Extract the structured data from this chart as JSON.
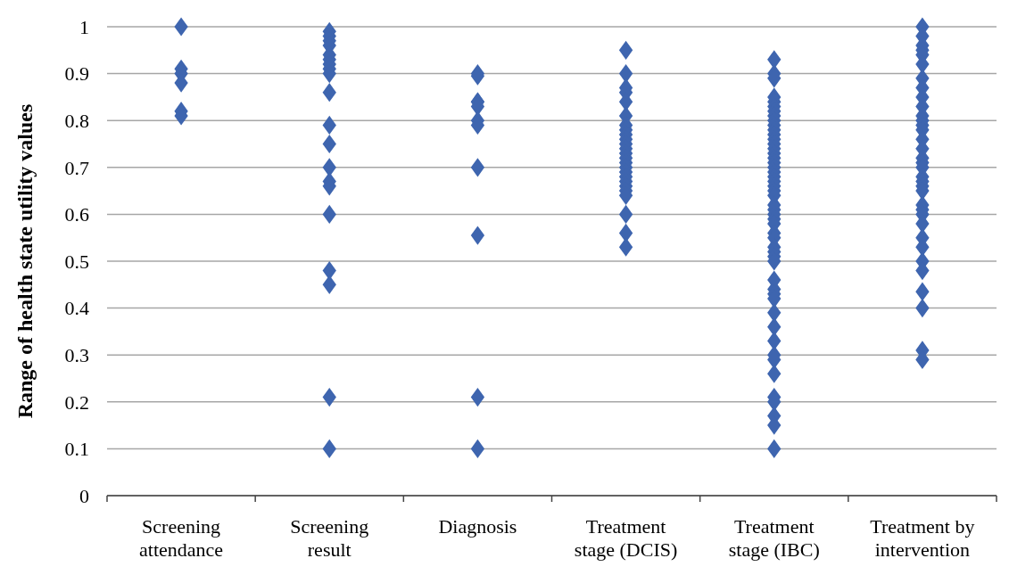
{
  "chart_data": {
    "type": "scatter",
    "ylabel": "Range of health state utility values",
    "categories": [
      "Screening attendance",
      "Screening result",
      "Diagnosis",
      "Treatment stage (DCIS)",
      "Treatment stage (IBC)",
      "Treatment by intervention"
    ],
    "ylim": [
      0,
      1
    ],
    "yticks": [
      0,
      0.1,
      0.2,
      0.3,
      0.4,
      0.5,
      0.6,
      0.7,
      0.8,
      0.9,
      1
    ],
    "grid": "y",
    "marker": "diamond",
    "series": [
      {
        "color": "#3e65af",
        "x": [
          "Screening attendance",
          "Screening attendance",
          "Screening attendance",
          "Screening attendance",
          "Screening attendance",
          "Screening attendance",
          "Screening result",
          "Screening result",
          "Screening result",
          "Screening result",
          "Screening result",
          "Screening result",
          "Screening result",
          "Screening result",
          "Screening result",
          "Screening result",
          "Screening result",
          "Screening result",
          "Screening result",
          "Screening result",
          "Screening result",
          "Screening result",
          "Screening result",
          "Screening result",
          "Screening result",
          "Screening result",
          "Diagnosis",
          "Diagnosis",
          "Diagnosis",
          "Diagnosis",
          "Diagnosis",
          "Diagnosis",
          "Diagnosis",
          "Diagnosis",
          "Diagnosis",
          "Diagnosis",
          "Diagnosis",
          "Treatment stage (DCIS)",
          "Treatment stage (DCIS)",
          "Treatment stage (DCIS)",
          "Treatment stage (DCIS)",
          "Treatment stage (DCIS)",
          "Treatment stage (DCIS)",
          "Treatment stage (DCIS)",
          "Treatment stage (DCIS)",
          "Treatment stage (DCIS)",
          "Treatment stage (DCIS)",
          "Treatment stage (DCIS)",
          "Treatment stage (DCIS)",
          "Treatment stage (DCIS)",
          "Treatment stage (DCIS)",
          "Treatment stage (DCIS)",
          "Treatment stage (DCIS)",
          "Treatment stage (DCIS)",
          "Treatment stage (DCIS)",
          "Treatment stage (DCIS)",
          "Treatment stage (DCIS)",
          "Treatment stage (DCIS)",
          "Treatment stage (DCIS)",
          "Treatment stage (DCIS)",
          "Treatment stage (DCIS)",
          "Treatment stage (DCIS)",
          "Treatment stage (IBC)",
          "Treatment stage (IBC)",
          "Treatment stage (IBC)",
          "Treatment stage (IBC)",
          "Treatment stage (IBC)",
          "Treatment stage (IBC)",
          "Treatment stage (IBC)",
          "Treatment stage (IBC)",
          "Treatment stage (IBC)",
          "Treatment stage (IBC)",
          "Treatment stage (IBC)",
          "Treatment stage (IBC)",
          "Treatment stage (IBC)",
          "Treatment stage (IBC)",
          "Treatment stage (IBC)",
          "Treatment stage (IBC)",
          "Treatment stage (IBC)",
          "Treatment stage (IBC)",
          "Treatment stage (IBC)",
          "Treatment stage (IBC)",
          "Treatment stage (IBC)",
          "Treatment stage (IBC)",
          "Treatment stage (IBC)",
          "Treatment stage (IBC)",
          "Treatment stage (IBC)",
          "Treatment stage (IBC)",
          "Treatment stage (IBC)",
          "Treatment stage (IBC)",
          "Treatment stage (IBC)",
          "Treatment stage (IBC)",
          "Treatment stage (IBC)",
          "Treatment stage (IBC)",
          "Treatment stage (IBC)",
          "Treatment stage (IBC)",
          "Treatment stage (IBC)",
          "Treatment stage (IBC)",
          "Treatment stage (IBC)",
          "Treatment stage (IBC)",
          "Treatment stage (IBC)",
          "Treatment stage (IBC)",
          "Treatment stage (IBC)",
          "Treatment stage (IBC)",
          "Treatment stage (IBC)",
          "Treatment stage (IBC)",
          "Treatment stage (IBC)",
          "Treatment stage (IBC)",
          "Treatment stage (IBC)",
          "Treatment stage (IBC)",
          "Treatment stage (IBC)",
          "Treatment stage (IBC)",
          "Treatment stage (IBC)",
          "Treatment by intervention",
          "Treatment by intervention",
          "Treatment by intervention",
          "Treatment by intervention",
          "Treatment by intervention",
          "Treatment by intervention",
          "Treatment by intervention",
          "Treatment by intervention",
          "Treatment by intervention",
          "Treatment by intervention",
          "Treatment by intervention",
          "Treatment by intervention",
          "Treatment by intervention",
          "Treatment by intervention",
          "Treatment by intervention",
          "Treatment by intervention",
          "Treatment by intervention",
          "Treatment by intervention",
          "Treatment by intervention",
          "Treatment by intervention",
          "Treatment by intervention",
          "Treatment by intervention",
          "Treatment by intervention",
          "Treatment by intervention",
          "Treatment by intervention",
          "Treatment by intervention",
          "Treatment by intervention",
          "Treatment by intervention",
          "Treatment by intervention",
          "Treatment by intervention",
          "Treatment by intervention",
          "Treatment by intervention",
          "Treatment by intervention",
          "Treatment by intervention",
          "Treatment by intervention"
        ],
        "values": [
          1.0,
          0.91,
          0.9,
          0.88,
          0.82,
          0.81,
          0.99,
          0.98,
          0.97,
          0.96,
          0.94,
          0.93,
          0.92,
          0.91,
          0.9,
          0.86,
          0.79,
          0.75,
          0.7,
          0.67,
          0.66,
          0.6,
          0.48,
          0.45,
          0.21,
          0.1,
          0.9,
          0.895,
          0.84,
          0.84,
          0.83,
          0.8,
          0.79,
          0.7,
          0.555,
          0.21,
          0.1,
          0.95,
          0.9,
          0.87,
          0.86,
          0.84,
          0.81,
          0.79,
          0.78,
          0.77,
          0.76,
          0.75,
          0.74,
          0.73,
          0.72,
          0.71,
          0.7,
          0.69,
          0.68,
          0.67,
          0.66,
          0.65,
          0.64,
          0.6,
          0.56,
          0.53,
          0.93,
          0.9,
          0.89,
          0.85,
          0.84,
          0.83,
          0.82,
          0.81,
          0.8,
          0.79,
          0.78,
          0.77,
          0.76,
          0.75,
          0.74,
          0.73,
          0.72,
          0.71,
          0.7,
          0.69,
          0.68,
          0.67,
          0.66,
          0.65,
          0.64,
          0.62,
          0.61,
          0.6,
          0.59,
          0.58,
          0.56,
          0.55,
          0.53,
          0.52,
          0.51,
          0.5,
          0.46,
          0.44,
          0.43,
          0.42,
          0.39,
          0.36,
          0.33,
          0.3,
          0.29,
          0.26,
          0.21,
          0.2,
          0.17,
          0.15,
          0.1,
          1.0,
          0.98,
          0.96,
          0.95,
          0.94,
          0.92,
          0.89,
          0.87,
          0.85,
          0.83,
          0.81,
          0.8,
          0.79,
          0.78,
          0.76,
          0.74,
          0.72,
          0.71,
          0.7,
          0.68,
          0.67,
          0.66,
          0.65,
          0.62,
          0.61,
          0.6,
          0.58,
          0.55,
          0.53,
          0.5,
          0.48,
          0.435,
          0.4,
          0.31,
          0.29
        ]
      }
    ]
  }
}
